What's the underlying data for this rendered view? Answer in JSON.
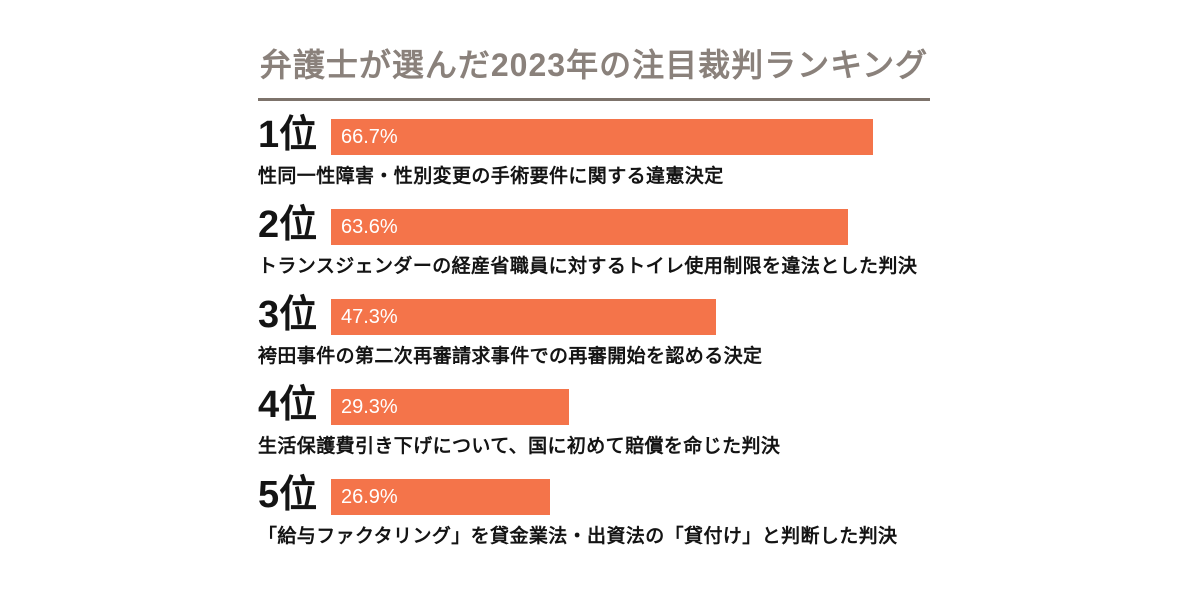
{
  "title": "弁護士が選んだ2023年の注目裁判ランキング",
  "colors": {
    "bar": "#F4744A",
    "title_text": "#8A817B",
    "title_underline": "#7D736B",
    "text": "#141414",
    "bar_value_label": "#FFFFFF",
    "background": "#FFFFFF"
  },
  "chart_data": {
    "type": "bar",
    "orientation": "horizontal",
    "title": "弁護士が選んだ2023年の注目裁判ランキング",
    "unit": "%",
    "xlim": [
      0,
      100
    ],
    "grid": false,
    "legend": false,
    "ranks": [
      "1位",
      "2位",
      "3位",
      "4位",
      "5位"
    ],
    "categories": [
      "性同一性障害・性別変更の手術要件に関する違憲決定",
      "トランスジェンダーの経産省職員に対するトイレ使用制限を違法とした判決",
      "袴田事件の第二次再審請求事件での再審開始を認める決定",
      "生活保護費引き下げについて、国に初めて賠償を命じた判決",
      "「給与ファクタリング」を貸金業法・出資法の「貸付け」と判断した判決"
    ],
    "values": [
      66.7,
      63.6,
      47.3,
      29.3,
      26.9
    ],
    "value_labels": [
      "66.7%",
      "63.6%",
      "47.3%",
      "29.3%",
      "26.9%"
    ]
  }
}
